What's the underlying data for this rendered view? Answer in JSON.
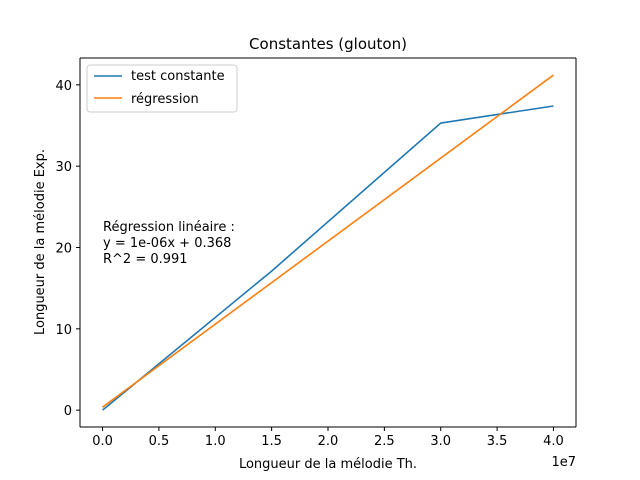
{
  "chart_data": {
    "type": "line",
    "title": "Constantes (glouton)",
    "xlabel": "Longueur de la mélodie Th.",
    "ylabel": "Longueur de la mélodie Exp.",
    "x_offset_label": "1e7",
    "xlim": [
      -0.2,
      4.2
    ],
    "ylim": [
      -2.07,
      43.3
    ],
    "x_ticks": [
      0.0,
      0.5,
      1.0,
      1.5,
      2.0,
      2.5,
      3.0,
      3.5,
      4.0
    ],
    "x_tick_labels": [
      "0.0",
      "0.5",
      "1.0",
      "1.5",
      "2.0",
      "2.5",
      "3.0",
      "3.5",
      "4.0"
    ],
    "y_ticks": [
      0,
      10,
      20,
      30,
      40
    ],
    "y_tick_labels": [
      "0",
      "10",
      "20",
      "30",
      "40"
    ],
    "grid": false,
    "legend_position": "upper-left",
    "series": [
      {
        "name": "test constante",
        "color": "#1f77b4",
        "x": [
          0.0,
          1.5,
          3.0,
          4.0
        ],
        "y": [
          0.0,
          17.1,
          35.3,
          37.4
        ]
      },
      {
        "name": "régression",
        "color": "#ff7f0e",
        "x": [
          0.0,
          4.0
        ],
        "y": [
          0.368,
          41.2
        ]
      }
    ],
    "annotation": {
      "lines": [
        "Régression linéaire :",
        "y = 1e-06x + 0.368",
        "R^2 = 0.991"
      ]
    }
  }
}
